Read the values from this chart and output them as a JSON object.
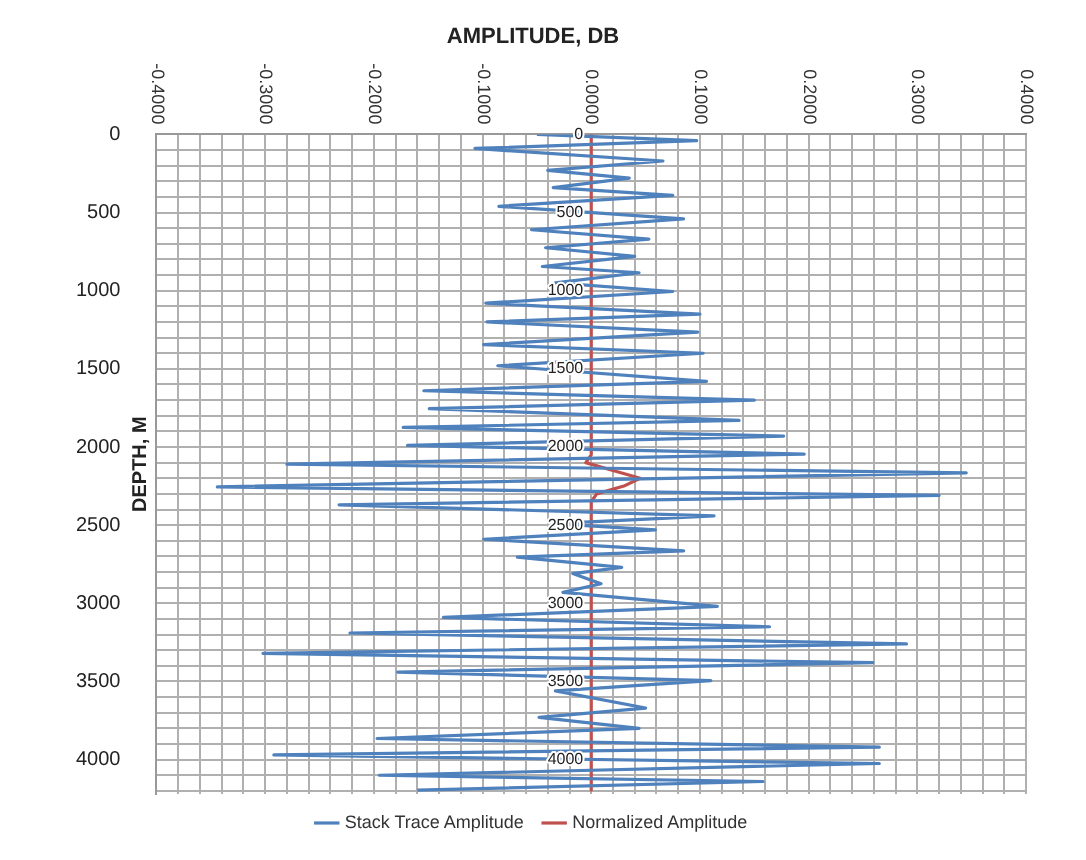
{
  "chart_data": {
    "type": "line",
    "title": "AMPLITUDE, DB",
    "ylabel": "DEPTH, M",
    "orientation": "horizontal",
    "x": [
      0,
      40,
      90,
      170,
      230,
      280,
      340,
      390,
      460,
      540,
      610,
      670,
      725,
      780,
      845,
      885,
      950,
      1005,
      1080,
      1150,
      1200,
      1265,
      1345,
      1400,
      1480,
      1580,
      1640,
      1700,
      1755,
      1830,
      1875,
      1930,
      1990,
      2045,
      2110,
      2165,
      2255,
      2310,
      2370,
      2440,
      2490,
      2530,
      2590,
      2665,
      2705,
      2770,
      2810,
      2875,
      2930,
      3020,
      3090,
      3150,
      3190,
      3260,
      3320,
      3380,
      3440,
      3495,
      3560,
      3670,
      3730,
      3800,
      3865,
      3920,
      3970,
      4025,
      4100,
      4140,
      4195
    ],
    "series": [
      {
        "name": "Stack Trace Amplitude",
        "color": "#4f81bd",
        "values": [
          -0.05,
          0.097,
          -0.107,
          0.066,
          -0.04,
          0.035,
          -0.035,
          0.075,
          -0.085,
          0.085,
          -0.055,
          0.053,
          -0.042,
          0.04,
          -0.045,
          0.044,
          -0.033,
          0.075,
          -0.097,
          0.1,
          -0.096,
          0.098,
          -0.099,
          0.103,
          -0.086,
          0.106,
          -0.154,
          0.15,
          -0.149,
          0.136,
          -0.173,
          0.177,
          -0.169,
          0.196,
          -0.28,
          0.345,
          -0.344,
          0.32,
          -0.232,
          0.113,
          -0.035,
          0.059,
          -0.099,
          0.085,
          -0.068,
          0.028,
          -0.017,
          0.009,
          -0.026,
          0.116,
          -0.136,
          0.164,
          -0.222,
          0.29,
          -0.302,
          0.259,
          -0.178,
          0.11,
          -0.033,
          0.05,
          -0.048,
          0.044,
          -0.197,
          0.265,
          -0.292,
          0.265,
          -0.195,
          0.158,
          -0.16
        ]
      },
      {
        "name": "Normalized Amplitude",
        "color": "#c0504d",
        "x": [
          0,
          2050,
          2100,
          2150,
          2200,
          2250,
          2300,
          2350,
          4195
        ],
        "values": [
          0,
          0,
          -0.005,
          0.02,
          0.045,
          0.03,
          0.005,
          0,
          0
        ]
      }
    ],
    "xlim": [
      -0.4,
      0.4
    ],
    "xticks": [
      {
        "value": -0.4,
        "label": "-0.4000"
      },
      {
        "value": -0.38,
        "label": null
      },
      {
        "value": -0.36,
        "label": null
      },
      {
        "value": -0.34,
        "label": null
      },
      {
        "value": -0.32,
        "label": null
      },
      {
        "value": -0.3,
        "label": "-0.3000"
      },
      {
        "value": -0.28,
        "label": null
      },
      {
        "value": -0.26,
        "label": null
      },
      {
        "value": -0.24,
        "label": null
      },
      {
        "value": -0.22,
        "label": null
      },
      {
        "value": -0.2,
        "label": "-0.2000"
      },
      {
        "value": -0.18,
        "label": null
      },
      {
        "value": -0.16,
        "label": null
      },
      {
        "value": -0.14,
        "label": null
      },
      {
        "value": -0.12,
        "label": null
      },
      {
        "value": -0.1,
        "label": "-0.1000"
      },
      {
        "value": -0.08,
        "label": null
      },
      {
        "value": -0.06,
        "label": null
      },
      {
        "value": -0.04,
        "label": null
      },
      {
        "value": -0.02,
        "label": null
      },
      {
        "value": 0,
        "label": "0.0000"
      },
      {
        "value": 0.02,
        "label": null
      },
      {
        "value": 0.04,
        "label": null
      },
      {
        "value": 0.06,
        "label": null
      },
      {
        "value": 0.08,
        "label": null
      },
      {
        "value": 0.1,
        "label": "0.1000"
      },
      {
        "value": 0.12,
        "label": null
      },
      {
        "value": 0.14,
        "label": null
      },
      {
        "value": 0.16,
        "label": null
      },
      {
        "value": 0.18,
        "label": null
      },
      {
        "value": 0.2,
        "label": "0.2000"
      },
      {
        "value": 0.22,
        "label": null
      },
      {
        "value": 0.24,
        "label": null
      },
      {
        "value": 0.26,
        "label": null
      },
      {
        "value": 0.28,
        "label": null
      },
      {
        "value": 0.3,
        "label": "0.3000"
      },
      {
        "value": 0.32,
        "label": null
      },
      {
        "value": 0.34,
        "label": null
      },
      {
        "value": 0.36,
        "label": null
      },
      {
        "value": 0.38,
        "label": null
      },
      {
        "value": 0.4,
        "label": "0.4000"
      }
    ],
    "ylim": [
      4220,
      0
    ],
    "yticks": [
      0,
      {
        "value": 100,
        "label": null
      },
      {
        "value": 200,
        "label": null
      },
      {
        "value": 300,
        "label": null
      },
      {
        "value": 400,
        "label": null
      },
      500,
      {
        "value": 600,
        "label": null
      },
      {
        "value": 700,
        "label": null
      },
      {
        "value": 800,
        "label": null
      },
      {
        "value": 900,
        "label": null
      },
      1000,
      {
        "value": 1100,
        "label": null
      },
      {
        "value": 1200,
        "label": null
      },
      {
        "value": 1300,
        "label": null
      },
      {
        "value": 1400,
        "label": null
      },
      1500,
      {
        "value": 1600,
        "label": null
      },
      {
        "value": 1700,
        "label": null
      },
      {
        "value": 1800,
        "label": null
      },
      {
        "value": 1900,
        "label": null
      },
      2000,
      {
        "value": 2100,
        "label": null
      },
      {
        "value": 2200,
        "label": null
      },
      {
        "value": 2300,
        "label": null
      },
      {
        "value": 2400,
        "label": null
      },
      2500,
      {
        "value": 2600,
        "label": null
      },
      {
        "value": 2700,
        "label": null
      },
      {
        "value": 2800,
        "label": null
      },
      {
        "value": 2900,
        "label": null
      },
      3000,
      {
        "value": 3100,
        "label": null
      },
      {
        "value": 3200,
        "label": null
      },
      {
        "value": 3300,
        "label": null
      },
      {
        "value": 3400,
        "label": null
      },
      3500,
      {
        "value": 3600,
        "label": null
      },
      {
        "value": 3700,
        "label": null
      },
      {
        "value": 3800,
        "label": null
      },
      {
        "value": 3900,
        "label": null
      },
      4000,
      {
        "value": 4100,
        "label": null
      },
      {
        "value": 4200,
        "label": null
      }
    ],
    "y2lim": [
      4220,
      0
    ],
    "y2ticks": [
      0,
      500,
      1000,
      1500,
      2000,
      2500,
      3000,
      3500,
      4000
    ],
    "grid": true,
    "legend": "bottom",
    "marker": "none",
    "line_style": "solid"
  }
}
